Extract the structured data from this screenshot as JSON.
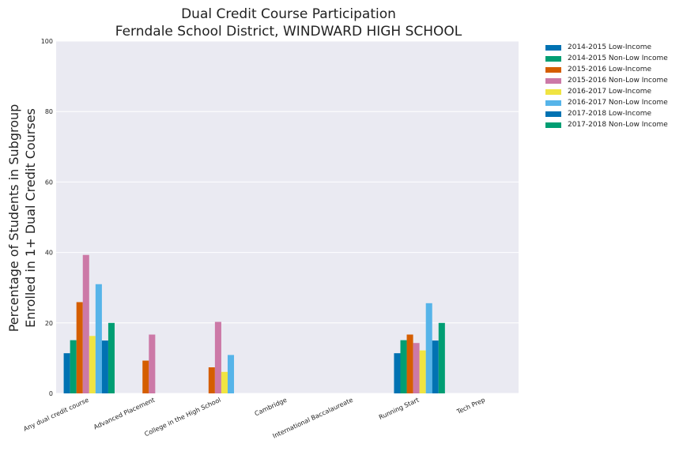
{
  "chart_data": {
    "type": "bar",
    "title": "Dual Credit Course Participation",
    "subtitle": "Ferndale School District, WINDWARD HIGH SCHOOL",
    "ylabel_line1": "Percentage of Students in Subgroup",
    "ylabel_line2": "Enrolled in 1+ Dual Credit Courses",
    "xlabel": "",
    "ylim": [
      0,
      100
    ],
    "yticks": [
      "0",
      "20",
      "40",
      "60",
      "80",
      "100"
    ],
    "grid": true,
    "legend_position": "right-outside",
    "categories": [
      "Any dual credit course",
      "Advanced Placement",
      "College in the High School",
      "Cambridge",
      "International Baccalaureate",
      "Running Start",
      "Tech Prep"
    ],
    "series": [
      {
        "name": "2014-2015 Low-Income",
        "color": "#0072b2",
        "values": [
          11.4,
          0,
          0,
          0,
          0,
          11.4,
          0
        ]
      },
      {
        "name": "2014-2015 Non-Low Income",
        "color": "#009e73",
        "values": [
          15.1,
          0,
          0,
          0,
          0,
          15.1,
          0
        ]
      },
      {
        "name": "2015-2016 Low-Income",
        "color": "#d55e00",
        "values": [
          25.9,
          9.3,
          7.4,
          0,
          0,
          16.7,
          0
        ]
      },
      {
        "name": "2015-2016 Non-Low Income",
        "color": "#cc79a7",
        "values": [
          39.3,
          16.7,
          20.3,
          0,
          0,
          14.3,
          0
        ]
      },
      {
        "name": "2016-2017 Low-Income",
        "color": "#f0e442",
        "values": [
          16.3,
          0,
          6.1,
          0,
          0,
          12.2,
          0
        ]
      },
      {
        "name": "2016-2017 Non-Low Income",
        "color": "#56b4e9",
        "values": [
          31.0,
          0,
          10.9,
          0,
          0,
          25.6,
          0
        ]
      },
      {
        "name": "2017-2018 Low-Income",
        "color": "#0072b2",
        "values": [
          15.0,
          0,
          0,
          0,
          0,
          15.0,
          0
        ]
      },
      {
        "name": "2017-2018 Non-Low Income",
        "color": "#009e73",
        "values": [
          20.0,
          0,
          0,
          0,
          0,
          20.0,
          0
        ]
      }
    ]
  }
}
